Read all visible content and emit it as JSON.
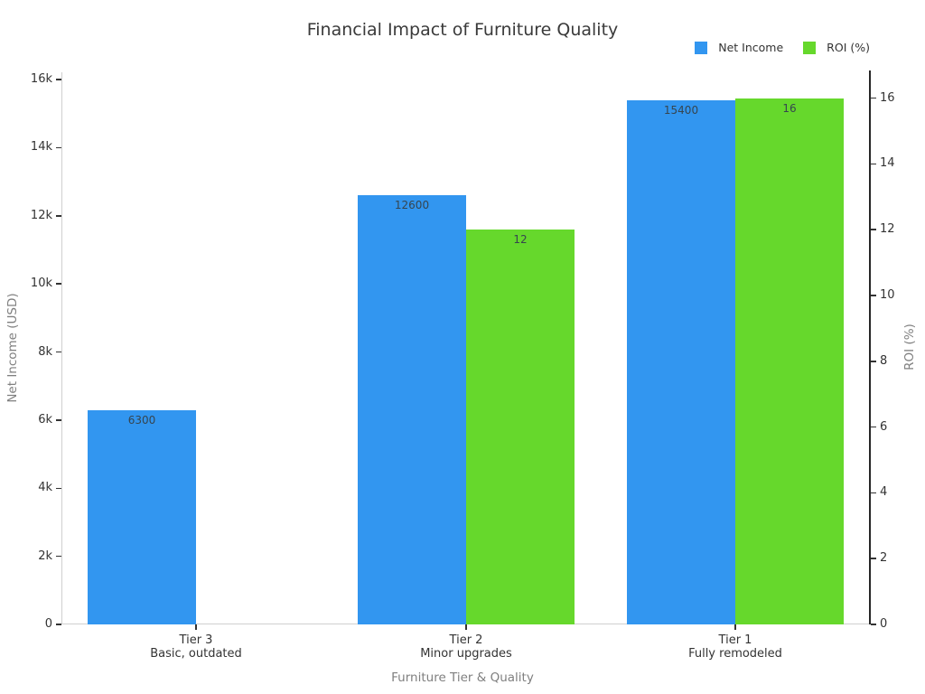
{
  "chart_data": {
    "type": "bar",
    "title": "Financial Impact of Furniture Quality",
    "xlabel": "Furniture Tier & Quality",
    "ylabel_left": "Net Income (USD)",
    "ylabel_right": "ROI (%)",
    "categories": [
      "Tier 3",
      "Tier 2",
      "Tier 1"
    ],
    "category_sublabels": [
      "Basic, outdated",
      "Minor upgrades",
      "Fully remodeled"
    ],
    "series": [
      {
        "name": "Net Income",
        "axis": "left",
        "color": "#3296F0",
        "values": [
          6300,
          12600,
          15400
        ],
        "labels": [
          "6300",
          "12600",
          "15400"
        ]
      },
      {
        "name": "ROI (%)",
        "axis": "right",
        "color": "#66D82C",
        "values": [
          0,
          12,
          16
        ],
        "labels": [
          "",
          "12",
          "16"
        ]
      }
    ],
    "left_axis": {
      "tick_labels": [
        "0",
        "2k",
        "4k",
        "6k",
        "8k",
        "10k",
        "12k",
        "14k",
        "16k"
      ],
      "tick_values": [
        0,
        2000,
        4000,
        6000,
        8000,
        10000,
        12000,
        14000,
        16000
      ],
      "range": [
        0,
        16200
      ]
    },
    "right_axis": {
      "tick_labels": [
        "0",
        "2",
        "4",
        "6",
        "8",
        "10",
        "12",
        "14",
        "16"
      ],
      "tick_values": [
        0,
        2,
        4,
        6,
        8,
        10,
        12,
        14,
        16
      ],
      "range": [
        0,
        16.8
      ]
    },
    "legend_position": "top-right",
    "grid": false,
    "colors": {
      "axis_line_light": "#cfcfcf",
      "axis_line_dark": "#262626",
      "tick_text": "#333333",
      "axis_title_text": "#7f7f7f",
      "bar_label_text": "#36454F",
      "title_text": "#3a3a3a"
    }
  }
}
